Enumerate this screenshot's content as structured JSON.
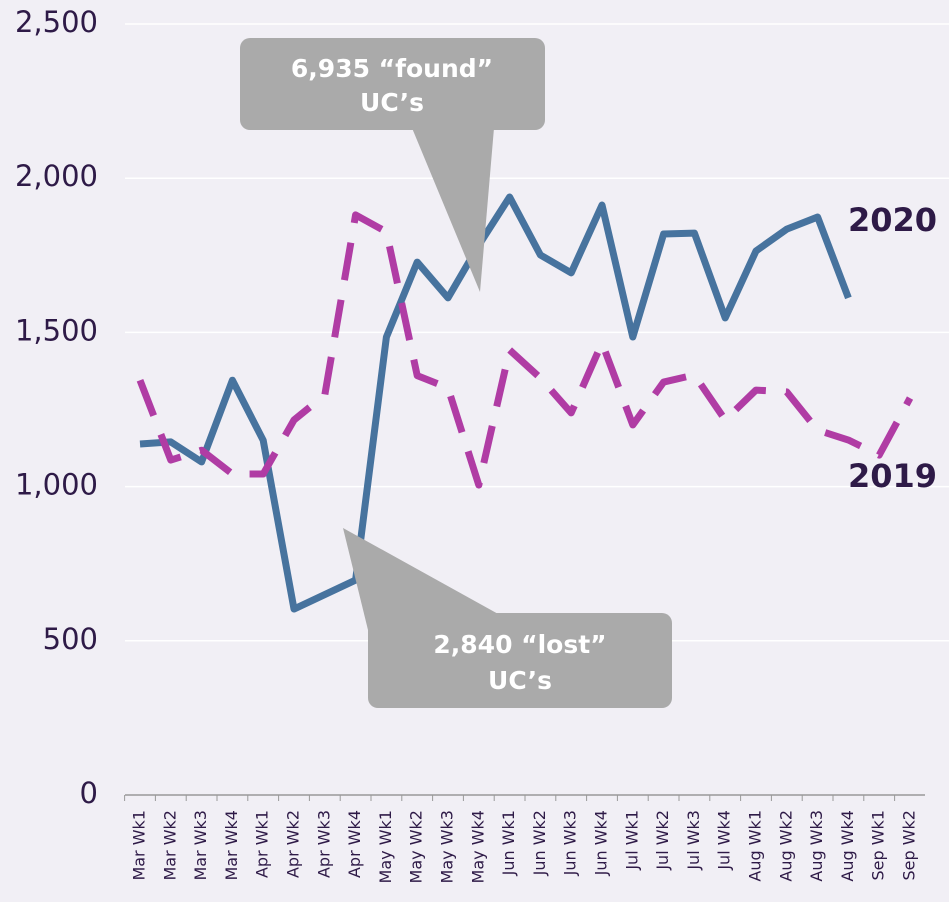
{
  "chart_data": {
    "type": "line",
    "categories": [
      "Mar Wk1",
      "Mar Wk2",
      "Mar Wk3",
      "Mar Wk4",
      "Apr Wk1",
      "Apr Wk2",
      "Apr Wk3",
      "Apr Wk4",
      "May Wk1",
      "May Wk2",
      "May Wk3",
      "May Wk4",
      "Jun Wk1",
      "Jun Wk2",
      "Jun Wk3",
      "Jun Wk4",
      "Jul Wk1",
      "Jul Wk2",
      "Jul Wk3",
      "Jul Wk4",
      "Aug Wk1",
      "Aug Wk2",
      "Aug Wk3",
      "Aug Wk4",
      "Sep Wk1",
      "Sep Wk2"
    ],
    "series": [
      {
        "name": "2020",
        "color": "#47739e",
        "dash": false,
        "values": [
          1138,
          1145,
          1080,
          1345,
          1150,
          603,
          650,
          697,
          1485,
          1728,
          1612,
          1783,
          1939,
          1751,
          1693,
          1913,
          1485,
          1819,
          1822,
          1547,
          1764,
          1835,
          1874,
          1612,
          null,
          null
        ]
      },
      {
        "name": "2019",
        "color": "#b03ca4",
        "dash": true,
        "values": [
          1345,
          1086,
          1118,
          1041,
          1041,
          1216,
          1297,
          1881,
          1826,
          1360,
          1320,
          1005,
          1443,
          1352,
          1239,
          1466,
          1200,
          1339,
          1362,
          1216,
          1313,
          1307,
          1183,
          1151,
          1102,
          1287
        ]
      }
    ],
    "ylim": [
      0,
      2500
    ],
    "yticks": [
      0,
      500,
      {
        "value": 1000,
        "label": "1,000"
      },
      {
        "value": 1500,
        "label": "1,500"
      },
      {
        "value": 2000,
        "label": "2,000"
      },
      {
        "value": 2500,
        "label": "2,500"
      }
    ],
    "grid": true,
    "annotations": [
      {
        "lines": [
          "6,935 “found”",
          "UC’s"
        ]
      },
      {
        "lines": [
          "2,840 “lost”",
          "UC’s"
        ]
      }
    ]
  }
}
